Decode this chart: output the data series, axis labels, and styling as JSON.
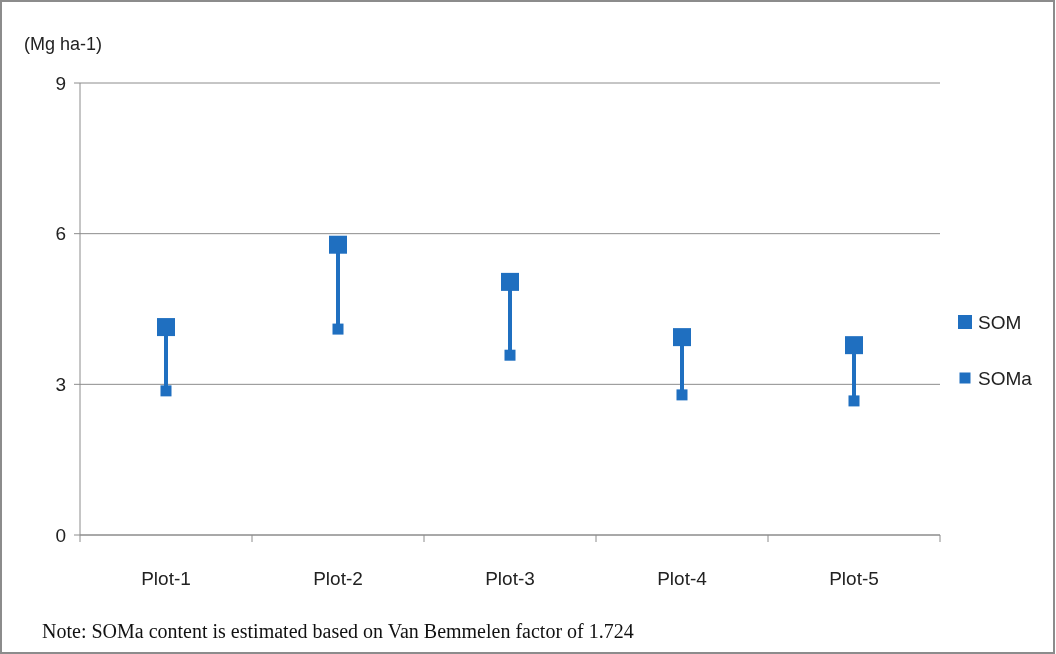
{
  "chart_data": {
    "type": "scatter",
    "ylabel": "(Mg ha-1)",
    "categories": [
      "Plot-1",
      "Plot-2",
      "Plot-3",
      "Plot-4",
      "Plot-5"
    ],
    "series": [
      {
        "name": "SOM",
        "color": "#1f6fc0",
        "values": [
          4.14,
          5.78,
          5.04,
          3.94,
          3.78
        ]
      },
      {
        "name": "SOMa",
        "color": "#1f6fc0",
        "values": [
          2.87,
          4.1,
          3.58,
          2.79,
          2.67
        ]
      }
    ],
    "ylim": [
      0,
      9
    ],
    "yticks": [
      0,
      3,
      6,
      9
    ],
    "grid": "y",
    "legend": "right",
    "marker": "square",
    "annotations": [
      "Note: SOMa content is estimated based on Van Bemmelen factor of 1.724"
    ]
  }
}
